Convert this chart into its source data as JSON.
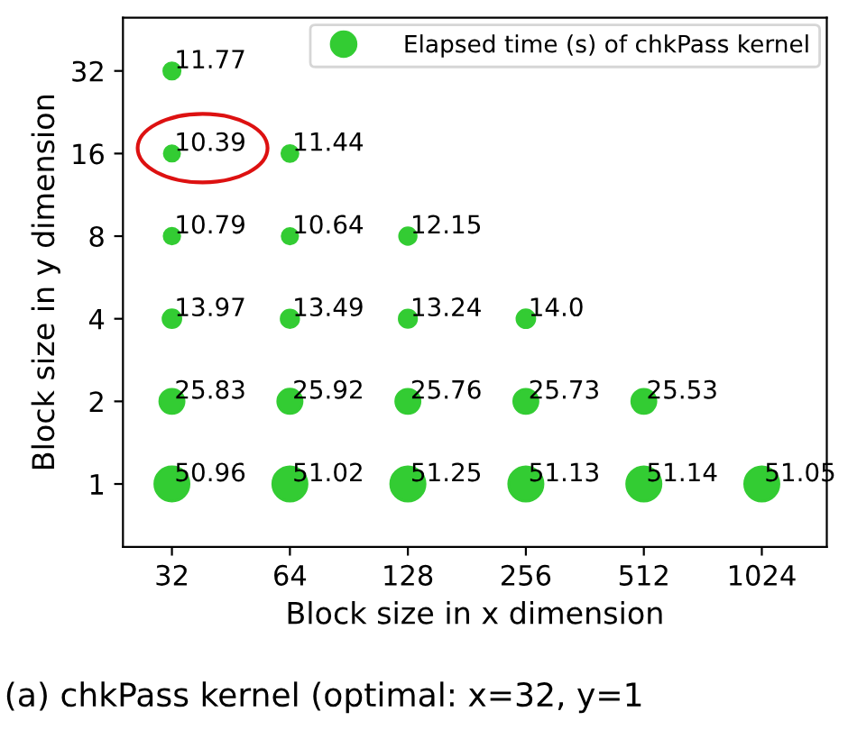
{
  "chart_data": {
    "type": "bubble",
    "xlabel": "Block size in x dimension",
    "ylabel": "Block size in y dimension",
    "annotations": [
      "(a) chkPass kernel (optimal: x=32, y=1"
    ],
    "log": "xy",
    "xlim": [
      24,
      1500
    ],
    "ylim": [
      0.59,
      50
    ],
    "xticks": [
      32,
      64,
      128,
      256,
      512,
      1024
    ],
    "yticks": [
      1,
      2,
      4,
      8,
      16,
      32
    ],
    "legend": "top right",
    "grid": false,
    "marker": "circle",
    "series": [
      {
        "name": "Elapsed time (s) of chkPass kernel",
        "color": "#33cc33",
        "x": [
          32,
          32,
          32,
          32,
          32,
          32,
          64,
          64,
          64,
          64,
          64,
          128,
          128,
          128,
          128,
          256,
          256,
          256,
          512,
          512,
          1024
        ],
        "values": [
          32,
          16,
          8,
          4,
          2,
          1,
          16,
          8,
          4,
          2,
          1,
          8,
          4,
          2,
          1,
          4,
          2,
          1,
          2,
          1,
          1
        ],
        "sizes": [
          11.77,
          10.39,
          10.79,
          13.97,
          25.83,
          50.96,
          11.44,
          10.64,
          13.49,
          25.92,
          51.02,
          12.15,
          13.24,
          25.76,
          51.25,
          14.0,
          25.73,
          51.13,
          25.53,
          51.14,
          51.05
        ],
        "value_labels": [
          "11.77",
          "10.39",
          "10.79",
          "13.97",
          "25.83",
          "50.96",
          "11.44",
          "10.64",
          "13.49",
          "25.92",
          "51.02",
          "12.15",
          "13.24",
          "25.76",
          "51.25",
          "14.0",
          "25.73",
          "51.13",
          "25.53",
          "51.14",
          "51.05"
        ]
      }
    ]
  }
}
